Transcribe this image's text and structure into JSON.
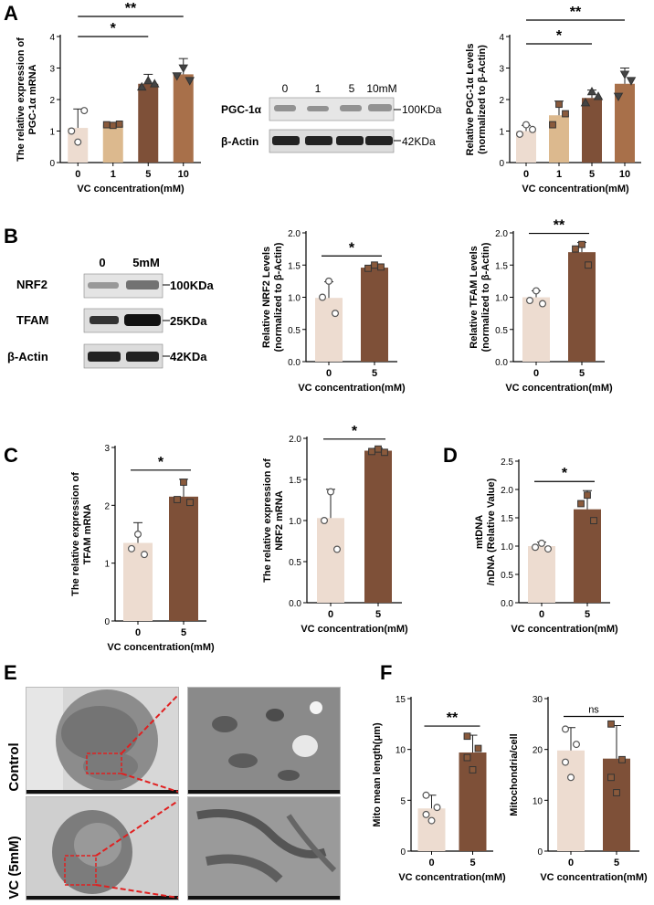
{
  "panel_letters": [
    "A",
    "B",
    "C",
    "D",
    "E",
    "F"
  ],
  "colors": {
    "c0": "#eddcd0",
    "c1": "#dcb98e",
    "c5": "#7e5038",
    "c10": "#a8704a",
    "axis": "#000000",
    "em_red": "#e02020"
  },
  "chart_data": [
    {
      "id": "A1",
      "type": "bar",
      "categories": [
        "0",
        "1",
        "5",
        "10"
      ],
      "values": [
        1.1,
        1.2,
        2.5,
        2.8
      ],
      "errors": [
        0.6,
        0.05,
        0.3,
        0.5
      ],
      "points": [
        [
          0.65,
          1.0,
          1.65
        ],
        [
          1.18,
          1.2,
          1.22
        ],
        [
          2.6,
          2.4,
          2.5
        ],
        [
          3.0,
          2.75,
          2.6
        ]
      ],
      "marker": [
        "circle",
        "square",
        "triangle",
        "tri-down"
      ],
      "xlabel": "VC concentration(mM)",
      "ylabel": "The relative expression of PGC-1α mRNA",
      "ylim": [
        0,
        4
      ],
      "yticks": [
        "0",
        "1",
        "2",
        "3",
        "4"
      ],
      "significance": [
        {
          "from": 0,
          "to": 2,
          "label": "*"
        },
        {
          "from": 0,
          "to": 3,
          "label": "**"
        }
      ]
    },
    {
      "id": "A2",
      "type": "bar",
      "categories": [
        "0",
        "1",
        "5",
        "10"
      ],
      "values": [
        1.0,
        1.5,
        2.05,
        2.5
      ],
      "errors": [
        0.18,
        0.45,
        0.25,
        0.5
      ],
      "points": [
        [
          1.2,
          0.9,
          1.05
        ],
        [
          1.85,
          1.2,
          1.55
        ],
        [
          2.25,
          1.9,
          2.1
        ],
        [
          2.8,
          2.1,
          2.6
        ]
      ],
      "marker": [
        "circle",
        "square",
        "triangle",
        "tri-down"
      ],
      "xlabel": "VC concentration(mM)",
      "ylabel": "Relative PGC-1α Levels (normalized to β-Actin)",
      "ylim": [
        0,
        4
      ],
      "yticks": [
        "0",
        "1",
        "2",
        "3",
        "4"
      ],
      "significance": [
        {
          "from": 0,
          "to": 2,
          "label": "*"
        },
        {
          "from": 0,
          "to": 3,
          "label": "**"
        }
      ]
    },
    {
      "id": "B1",
      "type": "bar",
      "categories": [
        "0",
        "5"
      ],
      "values": [
        0.99,
        1.46
      ],
      "errors": [
        0.25,
        0.04
      ],
      "points": [
        [
          1.25,
          1.0,
          0.75
        ],
        [
          1.5,
          1.45,
          1.47
        ]
      ],
      "marker": [
        "circle",
        "square"
      ],
      "xlabel": "VC concentration(mM)",
      "ylabel": "Relative NRF2 Levels (normalized to β-Actin)",
      "ylim": [
        0,
        2.0
      ],
      "yticks": [
        "0.0",
        "0.5",
        "1.0",
        "1.5",
        "2.0"
      ],
      "significance": [
        {
          "from": 0,
          "to": 1,
          "label": "*"
        }
      ]
    },
    {
      "id": "B2",
      "type": "bar",
      "categories": [
        "0",
        "5"
      ],
      "values": [
        1.0,
        1.7
      ],
      "errors": [
        0.1,
        0.15
      ],
      "points": [
        [
          1.1,
          0.95,
          0.9
        ],
        [
          1.82,
          1.75,
          1.5
        ]
      ],
      "marker": [
        "circle",
        "square"
      ],
      "xlabel": "VC concentration(mM)",
      "ylabel": "Relative TFAM Levels (normalized to β-Actin)",
      "ylim": [
        0,
        2.0
      ],
      "yticks": [
        "0.0",
        "0.5",
        "1.0",
        "1.5",
        "2.0"
      ],
      "significance": [
        {
          "from": 0,
          "to": 1,
          "label": "**"
        }
      ]
    },
    {
      "id": "C1",
      "type": "bar",
      "categories": [
        "0",
        "5"
      ],
      "values": [
        1.35,
        2.15
      ],
      "errors": [
        0.35,
        0.3
      ],
      "points": [
        [
          1.5,
          1.25,
          1.15
        ],
        [
          2.4,
          2.1,
          2.05
        ]
      ],
      "marker": [
        "circle",
        "square"
      ],
      "xlabel": "VC concentration(mM)",
      "ylabel": "The relative expression of TFAM mRNA",
      "ylim": [
        0,
        3
      ],
      "yticks": [
        "0",
        "1",
        "2",
        "3"
      ],
      "significance": [
        {
          "from": 0,
          "to": 1,
          "label": "*"
        }
      ]
    },
    {
      "id": "C2",
      "type": "bar",
      "categories": [
        "0",
        "5"
      ],
      "values": [
        1.03,
        1.85
      ],
      "errors": [
        0.35,
        0.03
      ],
      "points": [
        [
          1.35,
          1.0,
          0.65
        ],
        [
          1.87,
          1.84,
          1.83
        ]
      ],
      "marker": [
        "circle",
        "square"
      ],
      "xlabel": "VC concentration(mM)",
      "ylabel": "The relative expression of NRF2 mRNA",
      "ylim": [
        0,
        2.0
      ],
      "yticks": [
        "0.0",
        "0.5",
        "1.0",
        "1.5",
        "2.0"
      ],
      "significance": [
        {
          "from": 0,
          "to": 1,
          "label": "*"
        }
      ]
    },
    {
      "id": "D",
      "type": "bar",
      "categories": [
        "0",
        "5"
      ],
      "values": [
        1.0,
        1.65
      ],
      "errors": [
        0.07,
        0.33
      ],
      "points": [
        [
          1.05,
          0.98,
          0.95
        ],
        [
          1.9,
          1.75,
          1.45
        ]
      ],
      "marker": [
        "circle",
        "square"
      ],
      "xlabel": "VC concentration(mM)",
      "ylabel": "mtDNA/nDNA (Relative Value)",
      "ylim": [
        0,
        2.5
      ],
      "yticks": [
        "0.0",
        "0.5",
        "1.0",
        "1.5",
        "2.0",
        "2.5"
      ],
      "significance": [
        {
          "from": 0,
          "to": 1,
          "label": "*"
        }
      ]
    },
    {
      "id": "F1",
      "type": "bar",
      "categories": [
        "0",
        "5"
      ],
      "values": [
        4.2,
        9.7
      ],
      "errors": [
        1.3,
        1.7
      ],
      "points": [
        [
          5.5,
          4.3,
          3.6,
          3.0
        ],
        [
          11.3,
          10.1,
          9.2,
          8.0
        ]
      ],
      "marker": [
        "circle",
        "square"
      ],
      "xlabel": "VC concentration(mM)",
      "ylabel": "Mito mean length(μm)",
      "ylim": [
        0,
        15
      ],
      "yticks": [
        "0",
        "5",
        "10",
        "15"
      ],
      "significance": [
        {
          "from": 0,
          "to": 1,
          "label": "**"
        }
      ]
    },
    {
      "id": "F2",
      "type": "bar",
      "categories": [
        "0",
        "5"
      ],
      "values": [
        19.8,
        18.2
      ],
      "errors": [
        4.5,
        6.5
      ],
      "points": [
        [
          24.0,
          21.0,
          17.5,
          14.5
        ],
        [
          25.0,
          18.0,
          14.5,
          11.5
        ]
      ],
      "marker": [
        "circle",
        "square"
      ],
      "xlabel": "VC concentration(mM)",
      "ylabel": "Mitochondria/cell",
      "ylim": [
        0,
        30
      ],
      "yticks": [
        "0",
        "10",
        "20",
        "30"
      ],
      "significance": [
        {
          "from": 0,
          "to": 1,
          "label": "ns"
        }
      ]
    }
  ],
  "blot_A": {
    "lanes": [
      "0",
      "1",
      "5",
      "10mM"
    ],
    "rows": [
      "PGC-1α",
      "β-Actin"
    ],
    "sizes": [
      "100KDa",
      "42KDa"
    ]
  },
  "blot_B": {
    "lanes": [
      "0",
      "5mM"
    ],
    "rows": [
      "NRF2",
      "TFAM",
      "β-Actin"
    ],
    "sizes": [
      "100KDa",
      "25KDa",
      "42KDa"
    ]
  },
  "em": {
    "rows": [
      "Control",
      "VC (5mM)"
    ]
  }
}
